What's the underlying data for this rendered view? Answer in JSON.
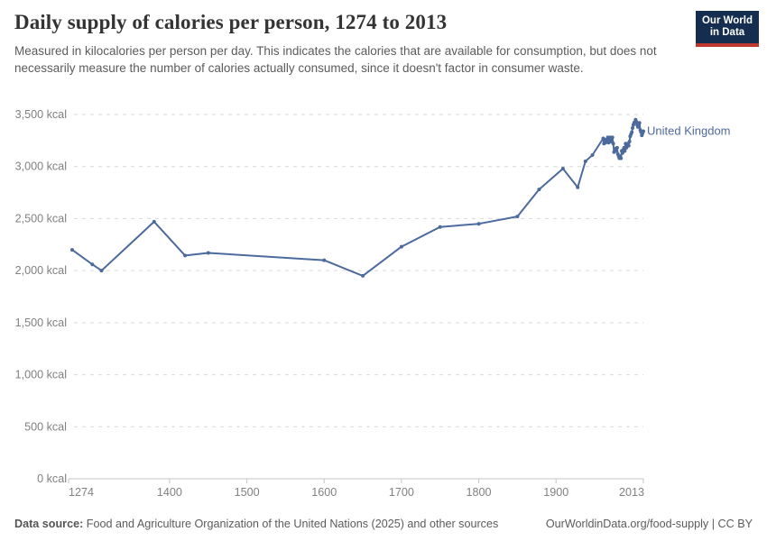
{
  "header": {
    "title": "Daily supply of calories per person, 1274 to 2013",
    "subtitle": "Measured in kilocalories per person per day. This indicates the calories that are available for consumption, but does not necessarily measure the number of calories actually consumed, since it doesn't factor in consumer waste."
  },
  "logo": {
    "line1": "Our World",
    "line2": "in Data"
  },
  "entity_label": "United Kingdom",
  "footer": {
    "datasource_label": "Data source:",
    "datasource_text": " Food and Agriculture Organization of the United Nations (2025) and other sources",
    "link": "OurWorldinData.org/food-supply",
    "divider": " | ",
    "license": "CC BY"
  },
  "colors": {
    "line": "#4C6A9C",
    "grid": "#d9d9d9",
    "axis_line": "#c6c6c6",
    "tick_text": "#818181",
    "title_text": "#333333",
    "logo_bg": "#152d4f",
    "logo_red": "#c0372f"
  },
  "chart_data": {
    "type": "line",
    "title": "Daily supply of calories per person, 1274 to 2013",
    "xlabel": "",
    "ylabel": "kcal per person per day",
    "xlim": [
      1274,
      2013
    ],
    "ylim": [
      0,
      3500
    ],
    "grid": "horizontal-dashed",
    "legend_position": "right-of-line",
    "yticks": [
      {
        "value": 0,
        "label": "0 kcal"
      },
      {
        "value": 500,
        "label": "500 kcal"
      },
      {
        "value": 1000,
        "label": "1,000 kcal"
      },
      {
        "value": 1500,
        "label": "1,500 kcal"
      },
      {
        "value": 2000,
        "label": "2,000 kcal"
      },
      {
        "value": 2500,
        "label": "2,500 kcal"
      },
      {
        "value": 3000,
        "label": "3,000 kcal"
      },
      {
        "value": 3500,
        "label": "3,500 kcal"
      }
    ],
    "xticks": [
      {
        "value": 1274,
        "label": "1274"
      },
      {
        "value": 1400,
        "label": "1400"
      },
      {
        "value": 1500,
        "label": "1500"
      },
      {
        "value": 1600,
        "label": "1600"
      },
      {
        "value": 1700,
        "label": "1700"
      },
      {
        "value": 1800,
        "label": "1800"
      },
      {
        "value": 1900,
        "label": "1900"
      },
      {
        "value": 2013,
        "label": "2013"
      }
    ],
    "series": [
      {
        "name": "United Kingdom",
        "points": [
          [
            1274,
            2200
          ],
          [
            1300,
            2060
          ],
          [
            1312,
            2000
          ],
          [
            1380,
            2470
          ],
          [
            1420,
            2145
          ],
          [
            1450,
            2170
          ],
          [
            1600,
            2100
          ],
          [
            1650,
            1950
          ],
          [
            1700,
            2230
          ],
          [
            1750,
            2420
          ],
          [
            1800,
            2450
          ],
          [
            1850,
            2520
          ],
          [
            1878,
            2780
          ],
          [
            1909,
            2980
          ],
          [
            1928,
            2800
          ],
          [
            1938,
            3050
          ],
          [
            1947,
            3110
          ],
          [
            1961,
            3270
          ],
          [
            1962,
            3220
          ],
          [
            1963,
            3260
          ],
          [
            1964,
            3230
          ],
          [
            1965,
            3240
          ],
          [
            1966,
            3260
          ],
          [
            1967,
            3280
          ],
          [
            1968,
            3230
          ],
          [
            1969,
            3260
          ],
          [
            1970,
            3280
          ],
          [
            1971,
            3240
          ],
          [
            1972,
            3250
          ],
          [
            1973,
            3280
          ],
          [
            1974,
            3220
          ],
          [
            1975,
            3140
          ],
          [
            1976,
            3170
          ],
          [
            1977,
            3150
          ],
          [
            1978,
            3170
          ],
          [
            1979,
            3180
          ],
          [
            1980,
            3120
          ],
          [
            1981,
            3100
          ],
          [
            1982,
            3080
          ],
          [
            1983,
            3100
          ],
          [
            1984,
            3080
          ],
          [
            1985,
            3150
          ],
          [
            1986,
            3130
          ],
          [
            1987,
            3160
          ],
          [
            1988,
            3180
          ],
          [
            1989,
            3150
          ],
          [
            1990,
            3220
          ],
          [
            1991,
            3180
          ],
          [
            1992,
            3200
          ],
          [
            1993,
            3220
          ],
          [
            1994,
            3200
          ],
          [
            1995,
            3240
          ],
          [
            1996,
            3290
          ],
          [
            1997,
            3310
          ],
          [
            1998,
            3330
          ],
          [
            1999,
            3370
          ],
          [
            2000,
            3400
          ],
          [
            2001,
            3420
          ],
          [
            2002,
            3430
          ],
          [
            2003,
            3450
          ],
          [
            2004,
            3430
          ],
          [
            2005,
            3400
          ],
          [
            2006,
            3380
          ],
          [
            2007,
            3400
          ],
          [
            2008,
            3420
          ],
          [
            2009,
            3350
          ],
          [
            2010,
            3330
          ],
          [
            2011,
            3300
          ],
          [
            2012,
            3320
          ],
          [
            2013,
            3340
          ]
        ]
      }
    ]
  }
}
